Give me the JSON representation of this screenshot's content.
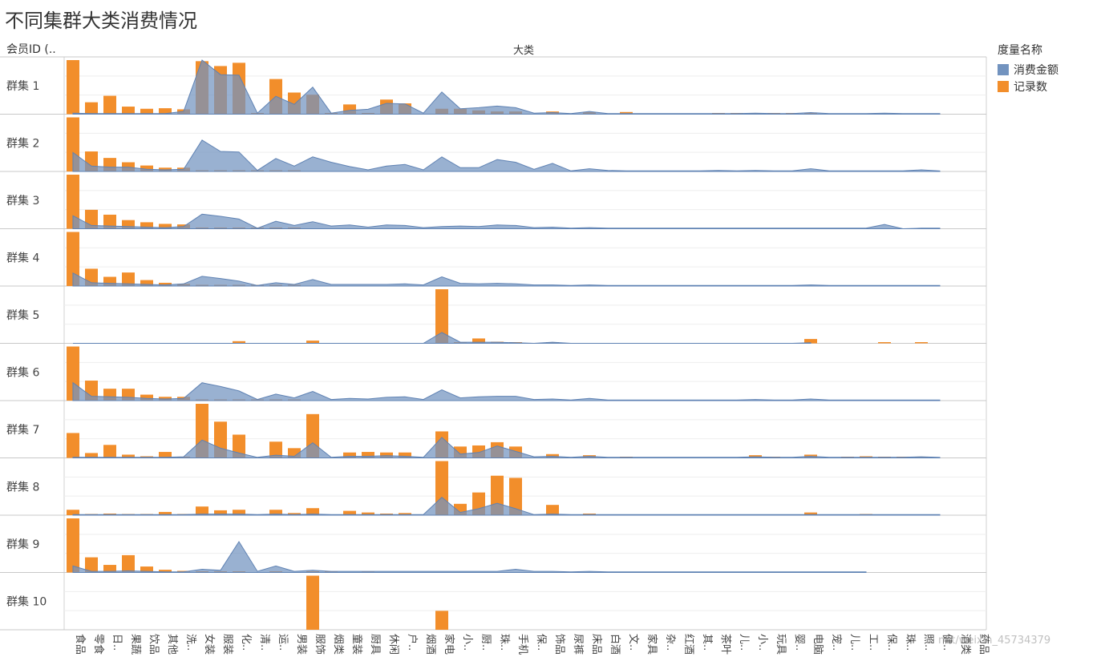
{
  "title": "不同集群大类消费情况",
  "row_header": "会员ID (..",
  "col_header": "大类",
  "legend": {
    "title": "度量名称",
    "items": [
      {
        "label": "消费金额",
        "color": "#7293bf"
      },
      {
        "label": "记录数",
        "color": "#f28e2b"
      }
    ]
  },
  "watermark": "net/weixin_45734379",
  "chart_data": {
    "type": "bar",
    "categories": [
      "食品",
      "零食",
      "日..",
      "果蔬",
      "饮品",
      "其他",
      "洗..",
      "女装",
      "服装",
      "化..",
      "清..",
      "运..",
      "男装",
      "服饰",
      "烟类",
      "童装",
      "厨具",
      "休闲",
      "户..",
      "烟酒",
      "家电",
      "小..",
      "厨..",
      "珠..",
      "手机",
      "保..",
      "饰品",
      "尿裤",
      "床品",
      "白酒",
      "文..",
      "家具",
      "杂..",
      "红酒",
      "其..",
      "茶叶",
      "儿..",
      "小..",
      "玩具",
      "婴..",
      "电脑",
      "宠..",
      "儿..",
      "工..",
      "保..",
      "珠..",
      "照..",
      "健..",
      "酒类",
      "药品"
    ],
    "row_labels": [
      "群集 1",
      "群集 2",
      "群集 3",
      "群集 4",
      "群集 5",
      "群集 6",
      "群集 7",
      "群集 8",
      "群集 9",
      "群集 10"
    ],
    "series": [
      {
        "name": "记录数",
        "mark": "bar",
        "color": "#f28e2b",
        "values": [
          [
            1.0,
            0.22,
            0.34,
            0.14,
            0.1,
            0.11,
            0.09,
            0.98,
            0.89,
            0.95,
            0.02,
            0.65,
            0.4,
            0.36,
            0.02,
            0.18,
            0.02,
            0.27,
            0.2,
            0,
            0.1,
            0.1,
            0.07,
            0.05,
            0.05,
            0,
            0.05,
            0,
            0.04,
            0,
            0.04,
            0,
            0,
            0,
            0,
            0.01,
            0.01,
            0.01,
            0.01,
            0.01,
            0.01,
            0,
            0,
            0,
            0,
            0,
            0,
            0,
            0,
            0
          ],
          [
            1.0,
            0.37,
            0.25,
            0.17,
            0.11,
            0.07,
            0.07,
            0.02,
            0.02,
            0.02,
            0.02,
            0.02,
            0.02,
            0,
            0,
            0,
            0,
            0,
            0,
            0,
            0,
            0,
            0,
            0,
            0,
            0,
            0,
            0,
            0,
            0,
            0,
            0,
            0,
            0,
            0,
            0,
            0,
            0,
            0,
            0,
            0,
            0,
            0,
            0,
            0,
            0,
            0,
            0,
            0,
            0
          ],
          [
            1.0,
            0.35,
            0.26,
            0.16,
            0.12,
            0.09,
            0.08,
            0.02,
            0.02,
            0.02,
            0.02,
            0.02,
            0.02,
            0,
            0,
            0,
            0,
            0,
            0,
            0,
            0,
            0,
            0,
            0,
            0,
            0,
            0,
            0,
            0,
            0,
            0,
            0,
            0,
            0,
            0,
            0,
            0,
            0,
            0,
            0,
            0,
            0,
            0,
            0,
            0,
            0,
            0,
            0,
            0,
            0
          ],
          [
            1.0,
            0.32,
            0.17,
            0.25,
            0.11,
            0.06,
            0.04,
            0.01,
            0.01,
            0.01,
            0.01,
            0.01,
            0.01,
            0,
            0,
            0,
            0,
            0,
            0,
            0,
            0,
            0,
            0,
            0,
            0,
            0,
            0,
            0,
            0,
            0,
            0,
            0,
            0,
            0,
            0,
            0,
            0,
            0,
            0,
            0,
            0,
            0,
            0,
            0,
            0,
            0,
            0,
            0,
            0,
            0
          ],
          [
            0,
            0,
            0,
            0,
            0,
            0,
            0,
            0,
            0,
            0.04,
            0,
            0,
            0,
            0.05,
            0,
            0,
            0,
            0,
            0,
            0,
            1.0,
            0.01,
            0.09,
            0.03,
            0.02,
            0,
            0.02,
            0,
            0,
            0,
            0,
            0,
            0,
            0,
            0,
            0,
            0,
            0,
            0,
            0,
            0.08,
            0,
            0,
            0,
            0.02,
            0,
            0.02,
            0,
            0,
            0
          ],
          [
            1.0,
            0.37,
            0.22,
            0.22,
            0.11,
            0.07,
            0.07,
            0.02,
            0.02,
            0.02,
            0.02,
            0.02,
            0.02,
            0,
            0,
            0,
            0,
            0,
            0,
            0,
            0,
            0,
            0,
            0,
            0,
            0,
            0,
            0,
            0,
            0,
            0,
            0,
            0,
            0,
            0,
            0,
            0,
            0,
            0,
            0,
            0,
            0,
            0,
            0,
            0,
            0,
            0,
            0,
            0,
            0
          ],
          [
            0.46,
            0.09,
            0.24,
            0.06,
            0.03,
            0.11,
            0.02,
            1.0,
            0.67,
            0.43,
            0,
            0.3,
            0.18,
            0.81,
            0,
            0.1,
            0.11,
            0.1,
            0.1,
            0,
            0.49,
            0.21,
            0.23,
            0.29,
            0.21,
            0,
            0.07,
            0,
            0.05,
            0,
            0.02,
            0,
            0,
            0,
            0,
            0,
            0,
            0.05,
            0.02,
            0,
            0.06,
            0,
            0.02,
            0.03,
            0.02,
            0.02,
            0.02,
            0,
            0,
            0
          ],
          [
            0.1,
            0.01,
            0.03,
            0.01,
            0.01,
            0.06,
            0.01,
            0.16,
            0.09,
            0.1,
            0,
            0.1,
            0.04,
            0.13,
            0,
            0.08,
            0.05,
            0.03,
            0.04,
            0,
            1.0,
            0.21,
            0.42,
            0.73,
            0.69,
            0,
            0.19,
            0,
            0.03,
            0,
            0,
            0,
            0,
            0,
            0,
            0,
            0,
            0,
            0,
            0,
            0.05,
            0,
            0,
            0.01,
            0,
            0,
            0,
            0,
            0,
            0
          ],
          [
            1.0,
            0.28,
            0.14,
            0.32,
            0.11,
            0.05,
            0.03,
            0.01,
            0.01,
            0.01,
            0,
            0.01,
            0,
            0.01,
            0.01,
            0,
            0.01,
            0,
            0,
            0,
            0,
            0,
            0,
            0,
            0,
            0,
            0,
            0,
            0,
            0,
            0,
            0,
            0,
            0,
            0,
            0,
            0,
            0,
            0,
            0,
            0,
            0,
            0,
            0,
            0,
            0,
            0,
            0,
            0,
            0
          ],
          [
            0,
            0,
            0,
            0,
            0,
            0,
            0,
            0,
            0,
            0,
            0,
            0,
            0,
            1.0,
            0,
            0,
            0,
            0,
            0,
            0,
            0.35,
            0,
            0,
            0,
            0,
            0,
            0,
            0,
            0,
            0,
            0,
            0,
            0,
            0,
            0,
            0,
            0,
            0,
            0,
            0,
            0,
            0,
            0,
            0,
            0,
            0,
            0,
            0,
            0,
            0
          ]
        ]
      },
      {
        "name": "消费金额",
        "mark": "area",
        "color": "#7293bf",
        "values": [
          [
            0.02,
            0.01,
            0.01,
            0.01,
            0.01,
            0.01,
            0.05,
            1.0,
            0.73,
            0.72,
            0.02,
            0.33,
            0.18,
            0.5,
            0.02,
            0.07,
            0.09,
            0.2,
            0.19,
            0.02,
            0.41,
            0.1,
            0.12,
            0.15,
            0.12,
            0.02,
            0.03,
            0.01,
            0.05,
            0.01,
            0.01,
            0.01,
            0.01,
            0.01,
            0.01,
            0.01,
            0.01,
            0.02,
            0.01,
            0.01,
            0.03,
            0.01,
            0.01,
            0.01,
            0.02,
            0.01,
            0.01,
            0.01,
            0,
            0
          ],
          [
            0.35,
            0.1,
            0.08,
            0.08,
            0.04,
            0.03,
            0.04,
            0.58,
            0.37,
            0.36,
            0.02,
            0.24,
            0.1,
            0.27,
            0.17,
            0.09,
            0.03,
            0.1,
            0.13,
            0.03,
            0.27,
            0.07,
            0.07,
            0.22,
            0.17,
            0.04,
            0.15,
            0.01,
            0.05,
            0.02,
            0.01,
            0.01,
            0.01,
            0.01,
            0.01,
            0.02,
            0.01,
            0.02,
            0.01,
            0.01,
            0.05,
            0.01,
            0.01,
            0.01,
            0.01,
            0.01,
            0.03,
            0.01,
            0,
            0
          ],
          [
            0.24,
            0.06,
            0.05,
            0.04,
            0.03,
            0.02,
            0.04,
            0.27,
            0.23,
            0.18,
            0.01,
            0.14,
            0.06,
            0.13,
            0.05,
            0.07,
            0.03,
            0.07,
            0.06,
            0.02,
            0.04,
            0.05,
            0.04,
            0.07,
            0.06,
            0.02,
            0.03,
            0.01,
            0.02,
            0.01,
            0.01,
            0.01,
            0.01,
            0.01,
            0.01,
            0.01,
            0.01,
            0.01,
            0.01,
            0.01,
            0.01,
            0.01,
            0.01,
            0.01,
            0.08,
            0,
            0.01,
            0.01,
            0,
            0
          ],
          [
            0.24,
            0.06,
            0.05,
            0.04,
            0.03,
            0.02,
            0.04,
            0.18,
            0.14,
            0.09,
            0.01,
            0.06,
            0.03,
            0.12,
            0.03,
            0.03,
            0.03,
            0.03,
            0.04,
            0.02,
            0.17,
            0.05,
            0.04,
            0.05,
            0.04,
            0.02,
            0.02,
            0.01,
            0.02,
            0.01,
            0.01,
            0.01,
            0.01,
            0.01,
            0.01,
            0.01,
            0.01,
            0.01,
            0.01,
            0.01,
            0.02,
            0.01,
            0.01,
            0.01,
            0.01,
            0.01,
            0.01,
            0.01,
            0,
            0
          ],
          [
            0,
            0,
            0,
            0,
            0,
            0,
            0,
            0,
            0,
            0,
            0,
            0,
            0,
            0,
            0,
            0,
            0,
            0,
            0,
            0,
            0.2,
            0.02,
            0.02,
            0.02,
            0.01,
            0,
            0.02,
            0,
            0,
            0,
            0,
            0,
            0,
            0,
            0,
            0,
            0,
            0,
            0,
            0,
            0.01,
            0,
            0,
            0,
            0,
            0,
            0,
            0,
            0,
            0
          ],
          [
            0.33,
            0.08,
            0.07,
            0.06,
            0.04,
            0.03,
            0.04,
            0.33,
            0.26,
            0.18,
            0.02,
            0.12,
            0.05,
            0.17,
            0.02,
            0.04,
            0.03,
            0.06,
            0.07,
            0.02,
            0.2,
            0.05,
            0.07,
            0.08,
            0.08,
            0.02,
            0.03,
            0.01,
            0.04,
            0.01,
            0.01,
            0.01,
            0.01,
            0.01,
            0.01,
            0.01,
            0.01,
            0.02,
            0.01,
            0.01,
            0.03,
            0.01,
            0.01,
            0.01,
            0.01,
            0.01,
            0.01,
            0.01,
            0,
            0
          ],
          [
            0.01,
            0.01,
            0.01,
            0.01,
            0.01,
            0.01,
            0.02,
            0.33,
            0.18,
            0.09,
            0.01,
            0.05,
            0.03,
            0.28,
            0.01,
            0.03,
            0.03,
            0.04,
            0.03,
            0.01,
            0.38,
            0.07,
            0.1,
            0.22,
            0.12,
            0.02,
            0.03,
            0.01,
            0.03,
            0.01,
            0.01,
            0.01,
            0.01,
            0.01,
            0.01,
            0.01,
            0.01,
            0.02,
            0.01,
            0.01,
            0.03,
            0.01,
            0.01,
            0.01,
            0.01,
            0.01,
            0.02,
            0.01,
            0,
            0
          ],
          [
            0.01,
            0.01,
            0.01,
            0.01,
            0.01,
            0.01,
            0.01,
            0.02,
            0.02,
            0.02,
            0.01,
            0.02,
            0.01,
            0.02,
            0.01,
            0.01,
            0.01,
            0.01,
            0.01,
            0.01,
            0.33,
            0.05,
            0.12,
            0.22,
            0.12,
            0.01,
            0.02,
            0.01,
            0.01,
            0.01,
            0.01,
            0.01,
            0.01,
            0.01,
            0.01,
            0.01,
            0.01,
            0.01,
            0.01,
            0.01,
            0.01,
            0.01,
            0.01,
            0.01,
            0.01,
            0.01,
            0.01,
            0.01,
            0,
            0
          ],
          [
            0.12,
            0.02,
            0.02,
            0.03,
            0.02,
            0.01,
            0.01,
            0.06,
            0.04,
            0.57,
            0.02,
            0.12,
            0.02,
            0.04,
            0.02,
            0.02,
            0.02,
            0.02,
            0.02,
            0.02,
            0.02,
            0.02,
            0.02,
            0.02,
            0.06,
            0.02,
            0.02,
            0.01,
            0.02,
            0.01,
            0.01,
            0.01,
            0.01,
            0.01,
            0.01,
            0.01,
            0.01,
            0.01,
            0.01,
            0.01,
            0.01,
            0.01,
            0.01,
            0.01,
            0,
            0,
            0,
            0,
            0,
            0
          ],
          [
            0,
            0,
            0,
            0,
            0,
            0,
            0,
            0,
            0,
            0,
            0,
            0,
            0,
            0,
            0,
            0,
            0,
            0,
            0,
            0,
            0,
            0,
            0,
            0,
            0,
            0,
            0,
            0,
            0,
            0,
            0,
            0,
            0,
            0,
            0,
            0,
            0,
            0,
            0,
            0,
            0,
            0,
            0,
            0,
            0,
            0,
            0,
            0,
            0,
            0
          ]
        ]
      }
    ],
    "grid": true,
    "legend_position": "right"
  }
}
